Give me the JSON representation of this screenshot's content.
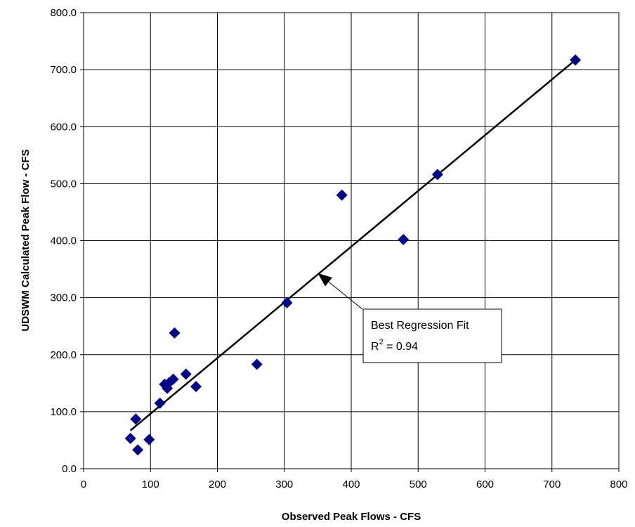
{
  "chart_data": {
    "type": "scatter",
    "xlabel": "Observed Peak Flows - CFS",
    "ylabel": "UDSWM Calculated Peak Flow - CFS",
    "xlim": [
      0,
      800
    ],
    "ylim": [
      0,
      800
    ],
    "xticks": [
      "0",
      "100",
      "200",
      "300",
      "400",
      "500",
      "600",
      "700",
      "800"
    ],
    "yticks": [
      "0.0",
      "100.0",
      "200.0",
      "300.0",
      "400.0",
      "500.0",
      "600.0",
      "700.0",
      "800.0"
    ],
    "grid": true,
    "marker_color": "#00008B",
    "series": [
      {
        "marker": "diamond",
        "points": [
          [
            70,
            53
          ],
          [
            81,
            33
          ],
          [
            78,
            87
          ],
          [
            98,
            51
          ],
          [
            114,
            115
          ],
          [
            121,
            148
          ],
          [
            125,
            141
          ],
          [
            128,
            151
          ],
          [
            134,
            157
          ],
          [
            136,
            238
          ],
          [
            153,
            166
          ],
          [
            168,
            144
          ],
          [
            259,
            183
          ],
          [
            304,
            291
          ],
          [
            386,
            480
          ],
          [
            478,
            402
          ],
          [
            529,
            516
          ],
          [
            735,
            717
          ]
        ]
      }
    ],
    "regression_line": {
      "x": [
        70,
        735
      ],
      "y": [
        67,
        717
      ]
    },
    "annotation": {
      "line1": "Best Regression Fit",
      "line2_prefix": "R",
      "line2_sup": "2",
      "line2_suffix": " = 0.94",
      "arrow_target": [
        350,
        343
      ]
    }
  }
}
